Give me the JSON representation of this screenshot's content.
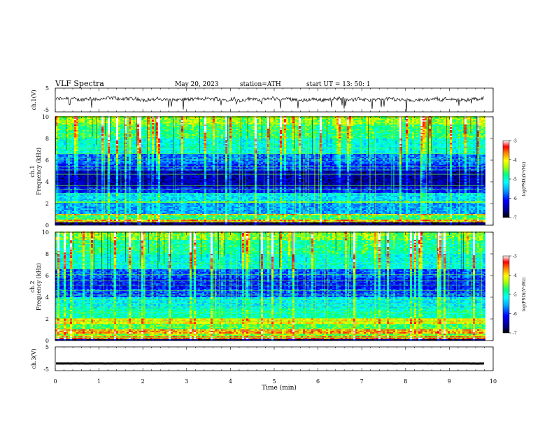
{
  "header": {
    "title": "VLF  Spectra",
    "date": "May 20, 2023",
    "station": "station=ATH",
    "start": "start  UT  =    13: 50: 1"
  },
  "chart_data": [
    {
      "id": "ch1",
      "type": "line",
      "ylabel": "ch.1(V)",
      "ylim": [
        -5,
        5
      ],
      "ytick_labels": [
        "5",
        "-5"
      ],
      "xlim": [
        0,
        10
      ],
      "baseline_v": 0.3
    },
    {
      "id": "ch1-spec",
      "type": "heatmap",
      "ylabel": "ch.1\nFrequency  (kHz)",
      "ylabel_lines": [
        "ch.1",
        "Frequency  (kHz)"
      ],
      "ylim": [
        0,
        10
      ],
      "ytick_labels": [
        "0",
        "2",
        "4",
        "6",
        "8",
        "10"
      ],
      "xlim": [
        0,
        10
      ],
      "colorbar": {
        "label": "log(PSD)(V²/Hz)",
        "range": [
          -7,
          -3
        ],
        "tick_labels": [
          "-3",
          "-4",
          "-5",
          "-6",
          "-7"
        ]
      }
    },
    {
      "id": "ch2-spec",
      "type": "heatmap",
      "ylabel_lines": [
        "ch.2",
        "Frequency  (kHz)"
      ],
      "ylim": [
        0,
        10
      ],
      "ytick_labels": [
        "0",
        "2",
        "4",
        "6",
        "8",
        "10"
      ],
      "xlim": [
        0,
        10
      ],
      "colorbar": {
        "label": "log(PSD)(V²/Hz)",
        "range": [
          -7,
          -3
        ],
        "tick_labels": [
          "-3",
          "-4",
          "-5",
          "-6",
          "-7"
        ]
      }
    },
    {
      "id": "ch3",
      "type": "line",
      "ylabel": "ch.3(V)",
      "ylim": [
        -5,
        5
      ],
      "ytick_labels": [
        "5",
        "-5"
      ],
      "xlim": [
        0,
        9.8
      ],
      "baseline_v": -2
    }
  ],
  "x_axis": {
    "label": "Time  (min)",
    "tick_labels": [
      "0",
      "1",
      "2",
      "3",
      "4",
      "5",
      "6",
      "7",
      "8",
      "9",
      "10"
    ]
  },
  "colors": {
    "axis": "#000000",
    "cmap": [
      "#000000",
      "#000080",
      "#0000ff",
      "#00aaff",
      "#00ffff",
      "#00ff80",
      "#aaff00",
      "#ffff00",
      "#ff8000",
      "#ff0000",
      "#ffffff"
    ]
  }
}
